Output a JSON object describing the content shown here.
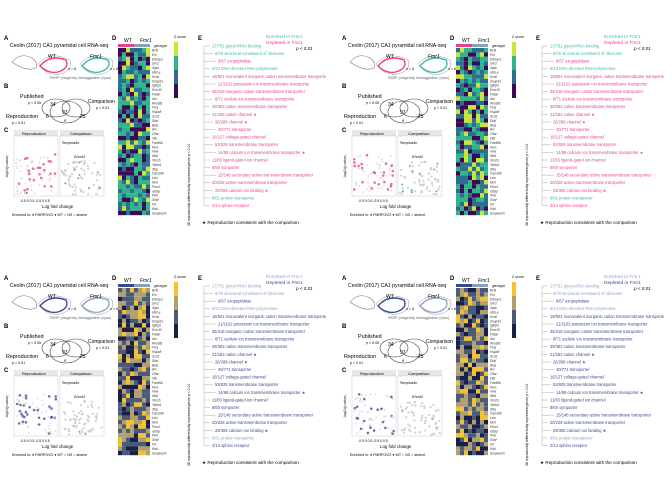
{
  "panels": [
    {
      "id": "p1",
      "accent": "#e83e8c",
      "accent2": "#3fb8b0",
      "heat": [
        "#3b0a52",
        "#2a6f8f",
        "#2fb58a",
        "#c9e43a"
      ]
    },
    {
      "id": "p2",
      "accent": "#e83e8c",
      "accent2": "#3fb8b0",
      "heat": [
        "#3b0a52",
        "#2a6f8f",
        "#2fb58a",
        "#c9e43a"
      ]
    },
    {
      "id": "p3",
      "accent": "#3a4a8f",
      "accent2": "#8fa3c8",
      "heat": [
        "#1a1f4a",
        "#4a5a7a",
        "#b0a070",
        "#f2c230"
      ]
    },
    {
      "id": "p4",
      "accent": "#3a4a8f",
      "accent2": "#8fa3c8",
      "heat": [
        "#1a1f4a",
        "#4a5a7a",
        "#b0a070",
        "#f2c230"
      ]
    }
  ],
  "text": {
    "label_A": "A",
    "label_B": "B",
    "label_C": "C",
    "label_D": "D",
    "label_E": "E",
    "title": "Ceolin (2017) CA1 pyramidal cell RNA-seq",
    "wt": "WT",
    "fmr1": "Fmr1",
    "n1": "n = 6",
    "n2": "n = 6",
    "tagline": "PARP (magenta)  hemagglutinin (cyan)",
    "published": "Published",
    "published_sub": "p < 0.05",
    "reproduction": "Reproduction",
    "reproduction_sub": "p < 0.01",
    "comparison": "Comparison",
    "comparison_sub": "p < 0.01",
    "venn_a": "34",
    "venn_b": "6",
    "venn_c": "25",
    "venn_d": "97",
    "venn_e": "9",
    "volcano_left": "Reproduction",
    "volcano_right": "Comparison",
    "gene1": "Serpina3n",
    "gene2": "Ehmt3",
    "axis_y": "-log10(p-value)",
    "axis_x": "Log fold change",
    "ticks": "-0.5  0  0.5   -0.5  0  0.5",
    "legend": "Enriched in:  ●  FMRPOVO   ●  WT   ○  NS   ○  absent",
    "heat_head_wt": "WT",
    "heat_head_fmr": "Fmr1",
    "zscore": "Z score",
    "genotype": "genotype",
    "heat_side": "38 reproducibly differentially expressed genes p < 0.01",
    "enriched": "Enriched in Fmr1",
    "depleted": "Depleted in Fmr1",
    "pval": "p < 0.01",
    "footnote": "★  Reproduction consistent with the comparison"
  },
  "genes": [
    "Bcl6",
    "Eln",
    "Efemp1",
    "Gm2",
    "Sgta",
    "Hbb-y",
    "Kcnn",
    "Snap91",
    "Igfbp6",
    "Emc10",
    "Pafah",
    "Atn",
    "Rhobtb",
    "Prrg",
    "Hspa8",
    "Scd1",
    "Dkkl",
    "Blaz",
    "Arc",
    "Cflar",
    "Inlb",
    "Famf6b",
    "Kkm",
    "Vwa",
    "Nfat",
    "Tex16",
    "Taldo1",
    "Sfrp",
    "Fam186",
    "Lsm",
    "Nrel",
    "Pnrc2",
    "Gbdp",
    "Plxn",
    "Shbf",
    "Krt",
    "Kitd",
    "Serpina3n"
  ],
  "go_terms": [
    {
      "t": "17/761 glycyl-tRNA binding",
      "c": "light"
    },
    {
      "t": "9/79 structural constituent of ribosome",
      "c": "light"
    },
    {
      "t": "6/67 exopeptidase",
      "c": "acc"
    },
    {
      "t": "6/24 DNA-directed RNA polymerase",
      "c": "light"
    },
    {
      "t": "18/501 monovalent inorganic cation transmembrane transporter",
      "c": "acc"
    },
    {
      "t": "21/1102 potassium ion transmembrane transporter",
      "c": "acc"
    },
    {
      "t": "35/318 inorganic cation transmembrane transporter",
      "c": "acc"
    },
    {
      "t": "8/71 sodium ion transmembrane transporter",
      "c": "acc"
    },
    {
      "t": "39/383 cation transmembrane transporter",
      "c": "acc"
    },
    {
      "t": "21/183 cation channel ★",
      "c": "acc"
    },
    {
      "t": "26/288 channel ★",
      "c": "acc"
    },
    {
      "t": "40/771 transporter",
      "c": "acc"
    },
    {
      "t": "16/127 voltage-gated channel",
      "c": "acc"
    },
    {
      "t": "53/925 transmembrane transporter",
      "c": "acc"
    },
    {
      "t": "14/88 calcium ion transmembrane transporter ★",
      "c": "acc"
    },
    {
      "t": "11/83 ligand-gated ion channel",
      "c": "acc"
    },
    {
      "t": "8/60 symporter",
      "c": "acc"
    },
    {
      "t": "15/148 secondary active transmembrane transporter",
      "c": "acc"
    },
    {
      "t": "20/228 active transmembrane transporter",
      "c": "acc"
    },
    {
      "t": "29/305 calcium ion binding ★",
      "c": "acc"
    },
    {
      "t": "8/61 protein transporter",
      "c": "light"
    },
    {
      "t": "2/14 sphinx receptor",
      "c": "acc"
    }
  ]
}
